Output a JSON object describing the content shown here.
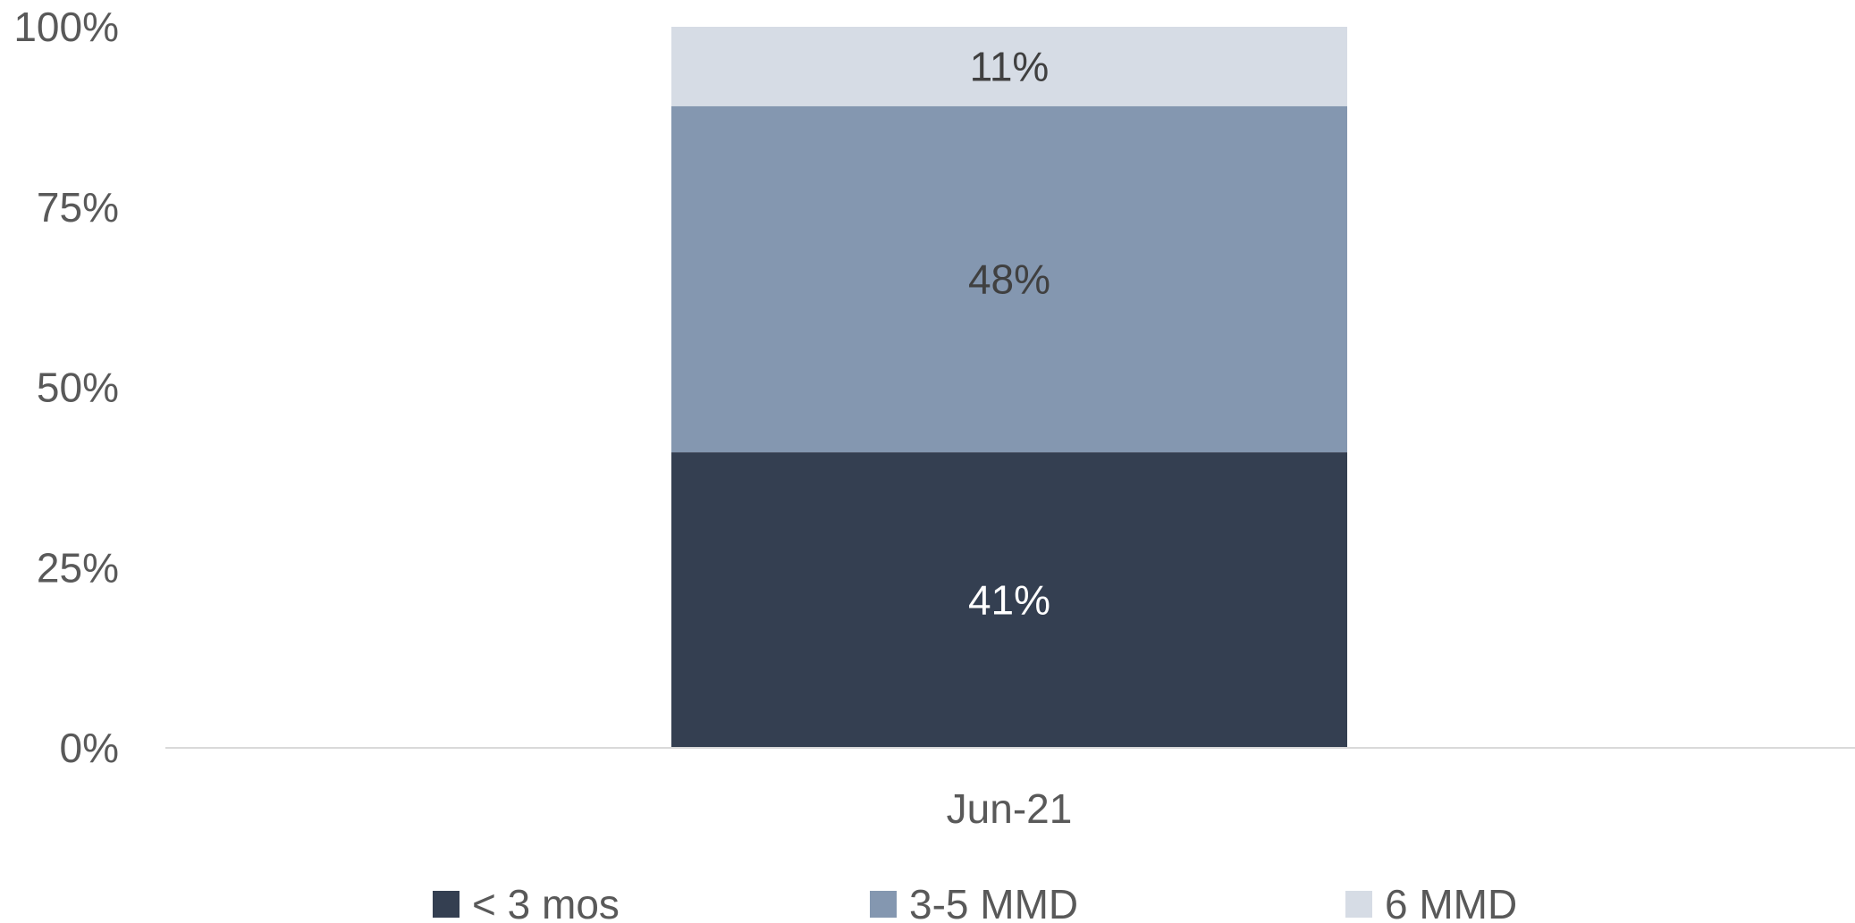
{
  "chart_data": {
    "type": "bar",
    "stacked": true,
    "orientation": "vertical",
    "categories": [
      "Jun-21"
    ],
    "series": [
      {
        "name": "< 3 mos",
        "values": [
          41
        ],
        "data_labels": [
          "41%"
        ],
        "color": "#343f51",
        "label_color": "#ffffff"
      },
      {
        "name": "3-5 MMD",
        "values": [
          48
        ],
        "data_labels": [
          "48%"
        ],
        "color": "#8497b0",
        "label_color": "#404040"
      },
      {
        "name": "6 MMD",
        "values": [
          11
        ],
        "data_labels": [
          "11%"
        ],
        "color": "#d6dce5",
        "label_color": "#404040"
      }
    ],
    "yticks": [
      "0%",
      "25%",
      "50%",
      "75%",
      "100%"
    ],
    "ytick_values": [
      0,
      25,
      50,
      75,
      100
    ],
    "ylim": [
      0,
      100
    ],
    "grid": false,
    "legend_position": "bottom",
    "axis_color": "#d9d9d9"
  }
}
